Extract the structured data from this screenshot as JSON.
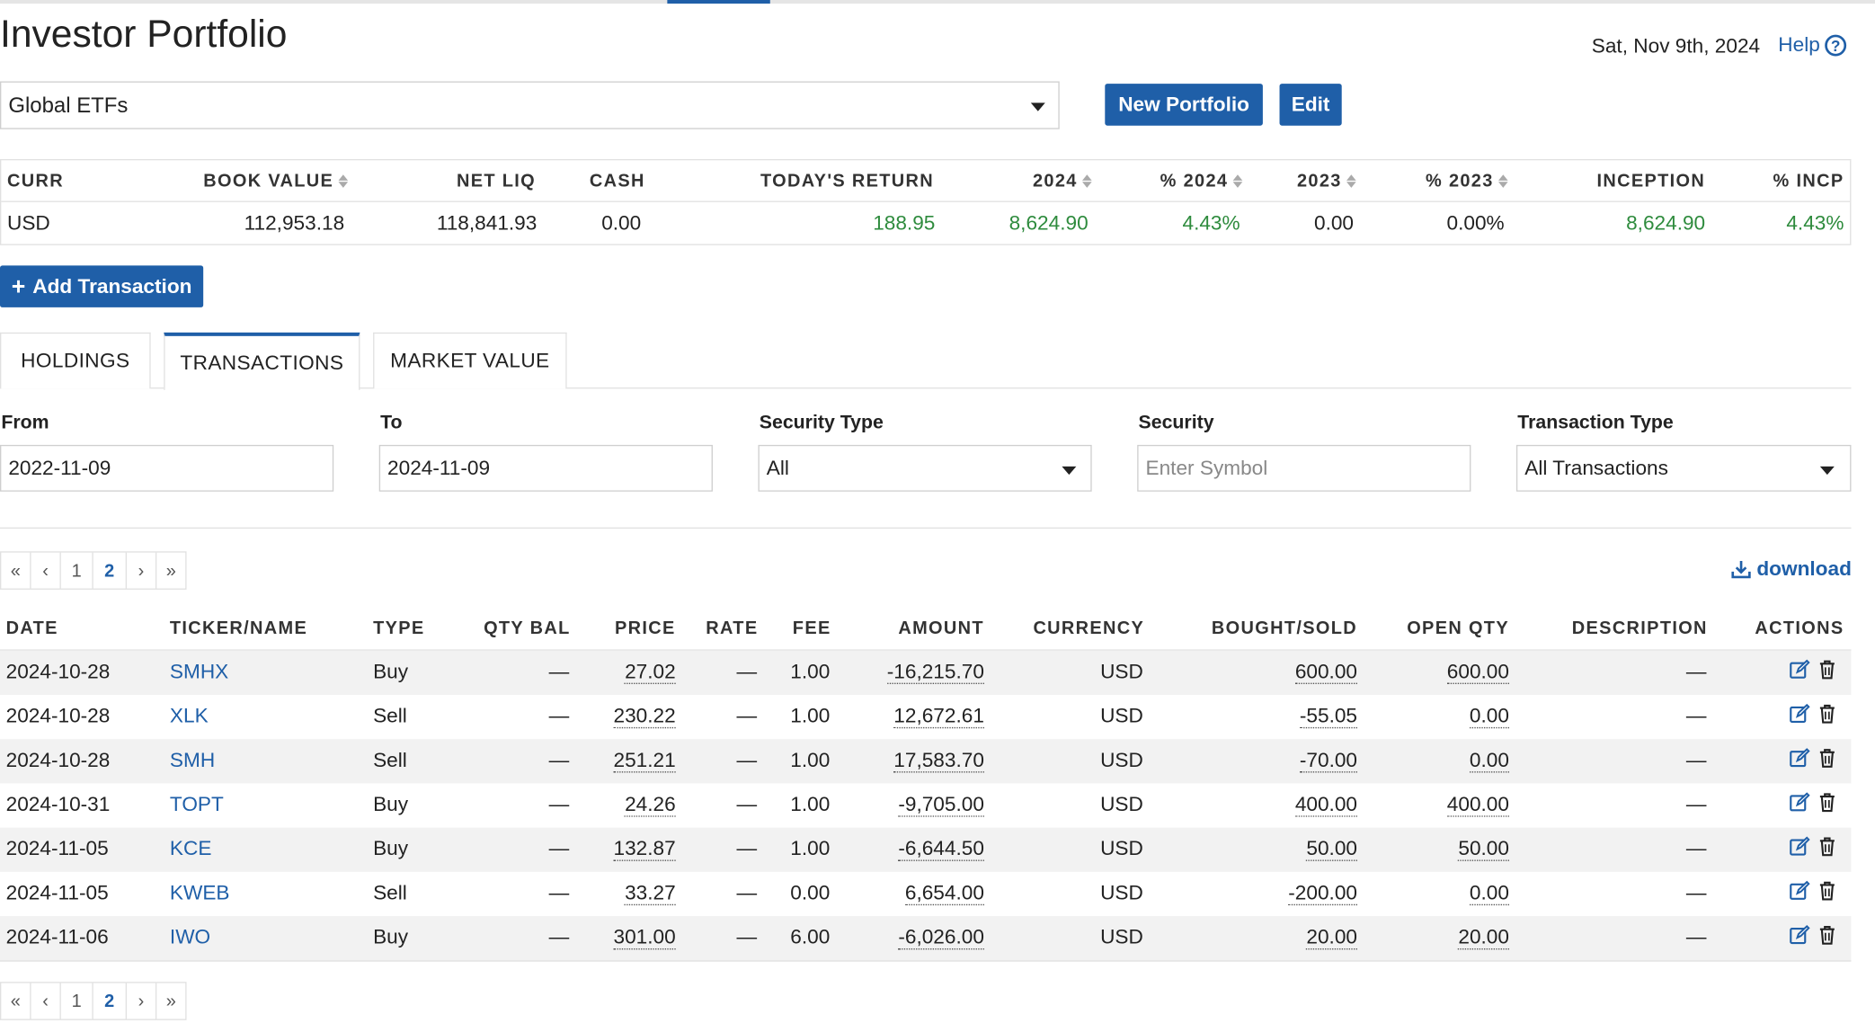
{
  "header": {
    "title": "Investor Portfolio",
    "date": "Sat, Nov 9th, 2024",
    "help_label": "Help",
    "help_icon": "question-circle-icon"
  },
  "portfolio_select": {
    "value": "Global ETFs"
  },
  "buttons": {
    "new_portfolio": "New Portfolio",
    "edit": "Edit",
    "add_transaction": "Add Transaction"
  },
  "summary": {
    "headers": [
      "CURR",
      "BOOK VALUE",
      "NET LIQ",
      "CASH",
      "TODAY'S RETURN",
      "2024",
      "% 2024",
      "2023",
      "% 2023",
      "INCEPTION",
      "% INCP"
    ],
    "values": [
      "USD",
      "112,953.18",
      "118,841.93",
      "0.00",
      "188.95",
      "8,624.90",
      "4.43%",
      "0.00",
      "0.00%",
      "8,624.90",
      "4.43%"
    ]
  },
  "tabs": [
    "HOLDINGS",
    "TRANSACTIONS",
    "MARKET VALUE"
  ],
  "filters": {
    "from_label": "From",
    "from_value": "2022-11-09",
    "to_label": "To",
    "to_value": "2024-11-09",
    "security_type_label": "Security Type",
    "security_type_value": "All",
    "security_label": "Security",
    "security_placeholder": "Enter Symbol",
    "transaction_type_label": "Transaction Type",
    "transaction_type_value": "All Transactions"
  },
  "pagination": {
    "first": "«",
    "prev": "‹",
    "pages": [
      "1",
      "2"
    ],
    "next": "›",
    "last": "»",
    "current": "2"
  },
  "download_label": "download",
  "transactions": {
    "headers": [
      "DATE",
      "TICKER/NAME",
      "TYPE",
      "QTY BAL",
      "PRICE",
      "RATE",
      "FEE",
      "AMOUNT",
      "CURRENCY",
      "BOUGHT/SOLD",
      "OPEN QTY",
      "DESCRIPTION",
      "ACTIONS"
    ],
    "rows": [
      {
        "date": "2024-10-28",
        "ticker": "SMHX",
        "type": "Buy",
        "qty_bal": "—",
        "price": "27.02",
        "rate": "—",
        "fee": "1.00",
        "amount": "-16,215.70",
        "currency": "USD",
        "bought_sold": "600.00",
        "open_qty": "600.00",
        "description": "—"
      },
      {
        "date": "2024-10-28",
        "ticker": "XLK",
        "type": "Sell",
        "qty_bal": "—",
        "price": "230.22",
        "rate": "—",
        "fee": "1.00",
        "amount": "12,672.61",
        "currency": "USD",
        "bought_sold": "-55.05",
        "open_qty": "0.00",
        "description": "—"
      },
      {
        "date": "2024-10-28",
        "ticker": "SMH",
        "type": "Sell",
        "qty_bal": "—",
        "price": "251.21",
        "rate": "—",
        "fee": "1.00",
        "amount": "17,583.70",
        "currency": "USD",
        "bought_sold": "-70.00",
        "open_qty": "0.00",
        "description": "—"
      },
      {
        "date": "2024-10-31",
        "ticker": "TOPT",
        "type": "Buy",
        "qty_bal": "—",
        "price": "24.26",
        "rate": "—",
        "fee": "1.00",
        "amount": "-9,705.00",
        "currency": "USD",
        "bought_sold": "400.00",
        "open_qty": "400.00",
        "description": "—"
      },
      {
        "date": "2024-11-05",
        "ticker": "KCE",
        "type": "Buy",
        "qty_bal": "—",
        "price": "132.87",
        "rate": "—",
        "fee": "1.00",
        "amount": "-6,644.50",
        "currency": "USD",
        "bought_sold": "50.00",
        "open_qty": "50.00",
        "description": "—"
      },
      {
        "date": "2024-11-05",
        "ticker": "KWEB",
        "type": "Sell",
        "qty_bal": "—",
        "price": "33.27",
        "rate": "—",
        "fee": "0.00",
        "amount": "6,654.00",
        "currency": "USD",
        "bought_sold": "-200.00",
        "open_qty": "0.00",
        "description": "—"
      },
      {
        "date": "2024-11-06",
        "ticker": "IWO",
        "type": "Buy",
        "qty_bal": "—",
        "price": "301.00",
        "rate": "—",
        "fee": "6.00",
        "amount": "-6,026.00",
        "currency": "USD",
        "bought_sold": "20.00",
        "open_qty": "20.00",
        "description": "—"
      }
    ]
  },
  "colors": {
    "accent": "#1f5fa8",
    "positive": "#2e8b3d",
    "row_alt": "#f2f2f2"
  }
}
